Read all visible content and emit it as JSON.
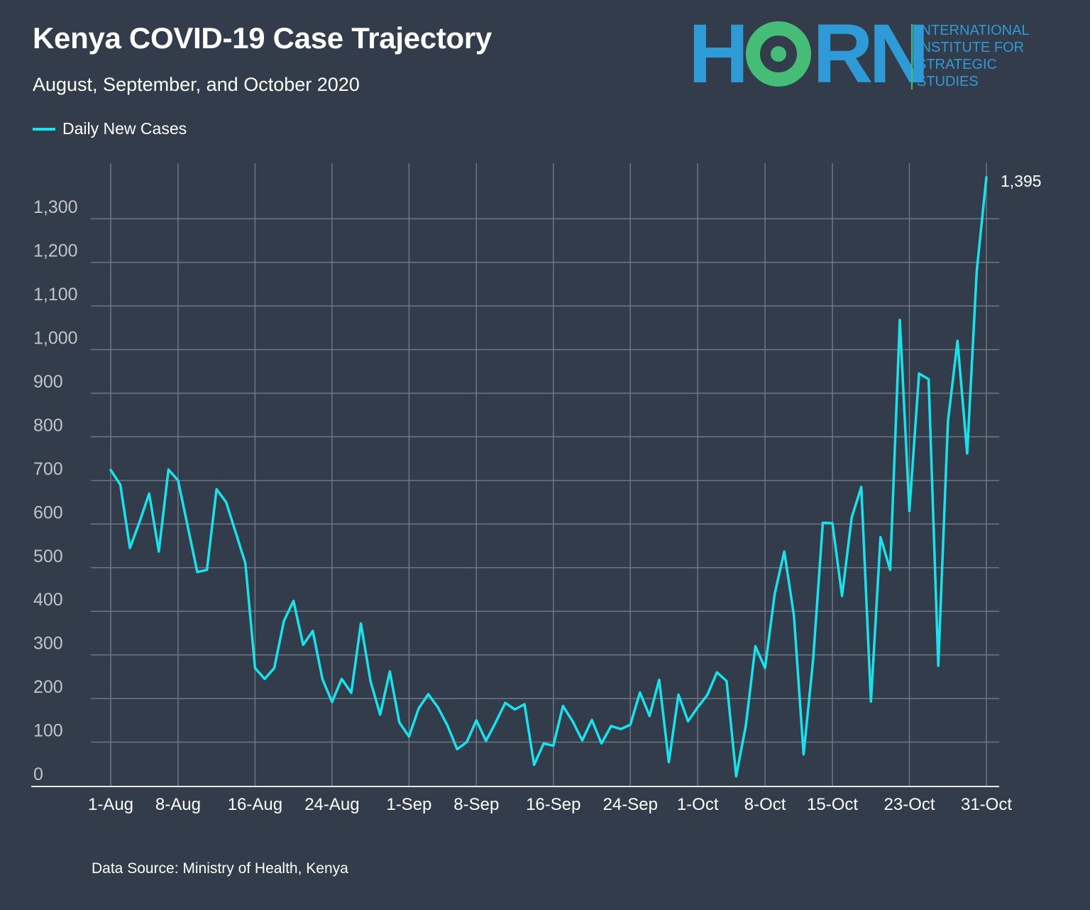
{
  "header": {
    "title": "Kenya COVID-19 Case Trajectory",
    "subtitle": "August, September, and October 2020"
  },
  "logo": {
    "word_start": "H",
    "word_end": "RN",
    "lines": [
      "INTERNATIONAL",
      "INSTITUTE FOR",
      "STRATEGIC",
      "STUDIES"
    ],
    "colors": {
      "blue": "#2f9bd6",
      "green": "#46bd77"
    }
  },
  "footer": {
    "source": "Data Source: Ministry of Health, Kenya"
  },
  "colors": {
    "background": "#323c4b",
    "line": "#17e3ec",
    "grid": "#6e7683",
    "tick_label": "#c0c4ca"
  },
  "chart_data": {
    "type": "line",
    "title": "Kenya COVID-19 Case Trajectory",
    "subtitle": "August, September, and October 2020",
    "xlabel": "",
    "ylabel": "",
    "ylim": [
      0,
      1400
    ],
    "xlim": [
      "2020-08-01",
      "2020-10-31"
    ],
    "grid": true,
    "legend": "top-left",
    "y_ticks": [
      {
        "value": 0,
        "label": "0"
      },
      {
        "value": 100,
        "label": "100"
      },
      {
        "value": 200,
        "label": "200"
      },
      {
        "value": 300,
        "label": "300"
      },
      {
        "value": 400,
        "label": "400"
      },
      {
        "value": 500,
        "label": "500"
      },
      {
        "value": 600,
        "label": "600"
      },
      {
        "value": 700,
        "label": "700"
      },
      {
        "value": 800,
        "label": "800"
      },
      {
        "value": 900,
        "label": "900"
      },
      {
        "value": 1000,
        "label": "1,000"
      },
      {
        "value": 1100,
        "label": "1,100"
      },
      {
        "value": 1200,
        "label": "1,200"
      },
      {
        "value": 1300,
        "label": "1,300"
      }
    ],
    "x_ticks": [
      {
        "date": "2020-08-01",
        "label": "1-Aug"
      },
      {
        "date": "2020-08-08",
        "label": "8-Aug"
      },
      {
        "date": "2020-08-16",
        "label": "16-Aug"
      },
      {
        "date": "2020-08-24",
        "label": "24-Aug"
      },
      {
        "date": "2020-09-01",
        "label": "1-Sep"
      },
      {
        "date": "2020-09-08",
        "label": "8-Sep"
      },
      {
        "date": "2020-09-16",
        "label": "16-Sep"
      },
      {
        "date": "2020-09-24",
        "label": "24-Sep"
      },
      {
        "date": "2020-10-01",
        "label": "1-Oct"
      },
      {
        "date": "2020-10-08",
        "label": "8-Oct"
      },
      {
        "date": "2020-10-15",
        "label": "15-Oct"
      },
      {
        "date": "2020-10-23",
        "label": "23-Oct"
      },
      {
        "date": "2020-10-31",
        "label": "31-Oct"
      }
    ],
    "annotations": [
      {
        "date": "2020-10-31",
        "value": 1395,
        "label": "1,395"
      }
    ],
    "series": [
      {
        "name": "Daily New Cases",
        "points": [
          {
            "date": "2020-08-01",
            "value": 724
          },
          {
            "date": "2020-08-02",
            "value": 690
          },
          {
            "date": "2020-08-03",
            "value": 545
          },
          {
            "date": "2020-08-04",
            "value": 605
          },
          {
            "date": "2020-08-05",
            "value": 670
          },
          {
            "date": "2020-08-06",
            "value": 537
          },
          {
            "date": "2020-08-07",
            "value": 725
          },
          {
            "date": "2020-08-08",
            "value": 700
          },
          {
            "date": "2020-08-09",
            "value": 595
          },
          {
            "date": "2020-08-10",
            "value": 490
          },
          {
            "date": "2020-08-11",
            "value": 495
          },
          {
            "date": "2020-08-12",
            "value": 680
          },
          {
            "date": "2020-08-13",
            "value": 650
          },
          {
            "date": "2020-08-14",
            "value": 580
          },
          {
            "date": "2020-08-15",
            "value": 510
          },
          {
            "date": "2020-08-16",
            "value": 270
          },
          {
            "date": "2020-08-17",
            "value": 245
          },
          {
            "date": "2020-08-18",
            "value": 270
          },
          {
            "date": "2020-08-19",
            "value": 378
          },
          {
            "date": "2020-08-20",
            "value": 424
          },
          {
            "date": "2020-08-21",
            "value": 323
          },
          {
            "date": "2020-08-22",
            "value": 355
          },
          {
            "date": "2020-08-23",
            "value": 245
          },
          {
            "date": "2020-08-24",
            "value": 192
          },
          {
            "date": "2020-08-25",
            "value": 245
          },
          {
            "date": "2020-08-26",
            "value": 213
          },
          {
            "date": "2020-08-27",
            "value": 372
          },
          {
            "date": "2020-08-28",
            "value": 240
          },
          {
            "date": "2020-08-29",
            "value": 163
          },
          {
            "date": "2020-08-30",
            "value": 262
          },
          {
            "date": "2020-08-31",
            "value": 145
          },
          {
            "date": "2020-09-01",
            "value": 113
          },
          {
            "date": "2020-09-02",
            "value": 177
          },
          {
            "date": "2020-09-03",
            "value": 210
          },
          {
            "date": "2020-09-04",
            "value": 180
          },
          {
            "date": "2020-09-05",
            "value": 138
          },
          {
            "date": "2020-09-06",
            "value": 84
          },
          {
            "date": "2020-09-07",
            "value": 100
          },
          {
            "date": "2020-09-08",
            "value": 150
          },
          {
            "date": "2020-09-09",
            "value": 103
          },
          {
            "date": "2020-09-10",
            "value": 145
          },
          {
            "date": "2020-09-11",
            "value": 190
          },
          {
            "date": "2020-09-12",
            "value": 175
          },
          {
            "date": "2020-09-13",
            "value": 187
          },
          {
            "date": "2020-09-14",
            "value": 48
          },
          {
            "date": "2020-09-15",
            "value": 97
          },
          {
            "date": "2020-09-16",
            "value": 92
          },
          {
            "date": "2020-09-17",
            "value": 183
          },
          {
            "date": "2020-09-18",
            "value": 148
          },
          {
            "date": "2020-09-19",
            "value": 104
          },
          {
            "date": "2020-09-20",
            "value": 151
          },
          {
            "date": "2020-09-21",
            "value": 97
          },
          {
            "date": "2020-09-22",
            "value": 137
          },
          {
            "date": "2020-09-23",
            "value": 130
          },
          {
            "date": "2020-09-24",
            "value": 140
          },
          {
            "date": "2020-09-25",
            "value": 214
          },
          {
            "date": "2020-09-26",
            "value": 160
          },
          {
            "date": "2020-09-27",
            "value": 243
          },
          {
            "date": "2020-09-28",
            "value": 54
          },
          {
            "date": "2020-09-29",
            "value": 209
          },
          {
            "date": "2020-09-30",
            "value": 148
          },
          {
            "date": "2020-10-01",
            "value": 180
          },
          {
            "date": "2020-10-02",
            "value": 208
          },
          {
            "date": "2020-10-03",
            "value": 260
          },
          {
            "date": "2020-10-04",
            "value": 240
          },
          {
            "date": "2020-10-05",
            "value": 22
          },
          {
            "date": "2020-10-06",
            "value": 138
          },
          {
            "date": "2020-10-07",
            "value": 320
          },
          {
            "date": "2020-10-08",
            "value": 270
          },
          {
            "date": "2020-10-09",
            "value": 440
          },
          {
            "date": "2020-10-10",
            "value": 537
          },
          {
            "date": "2020-10-11",
            "value": 390
          },
          {
            "date": "2020-10-12",
            "value": 72
          },
          {
            "date": "2020-10-13",
            "value": 290
          },
          {
            "date": "2020-10-14",
            "value": 603
          },
          {
            "date": "2020-10-15",
            "value": 602
          },
          {
            "date": "2020-10-16",
            "value": 435
          },
          {
            "date": "2020-10-17",
            "value": 615
          },
          {
            "date": "2020-10-18",
            "value": 685
          },
          {
            "date": "2020-10-19",
            "value": 193
          },
          {
            "date": "2020-10-20",
            "value": 570
          },
          {
            "date": "2020-10-21",
            "value": 495
          },
          {
            "date": "2020-10-22",
            "value": 1068
          },
          {
            "date": "2020-10-23",
            "value": 630
          },
          {
            "date": "2020-10-24",
            "value": 945
          },
          {
            "date": "2020-10-25",
            "value": 932
          },
          {
            "date": "2020-10-26",
            "value": 275
          },
          {
            "date": "2020-10-27",
            "value": 835
          },
          {
            "date": "2020-10-28",
            "value": 1020
          },
          {
            "date": "2020-10-29",
            "value": 762
          },
          {
            "date": "2020-10-30",
            "value": 1180
          },
          {
            "date": "2020-10-31",
            "value": 1395
          }
        ]
      }
    ]
  }
}
